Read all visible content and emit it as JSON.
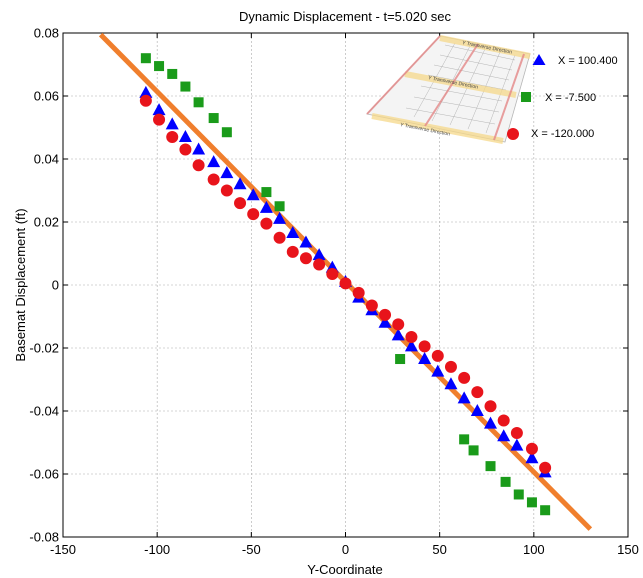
{
  "chart_data": {
    "type": "scatter",
    "title": "Dynamic Displacement - t=5.020 sec",
    "xlabel": "Y-Coordinate",
    "ylabel": "Basemat Displacement (ft)",
    "xlim": [
      -150,
      150
    ],
    "ylim": [
      -0.08,
      0.08
    ],
    "x_ticks": [
      -150,
      -100,
      -50,
      0,
      50,
      100,
      150
    ],
    "y_ticks": [
      0.08,
      0.06,
      0.04,
      0.02,
      0,
      -0.02,
      -0.04,
      -0.06,
      -0.08
    ],
    "x_tick_labels": [
      "-150",
      "-100",
      "-50",
      "0",
      "50",
      "100",
      "150"
    ],
    "y_tick_labels": [
      "0.08",
      "0.06",
      "0.04",
      "0.02",
      "0",
      "-0.02",
      "-0.04",
      "-0.06",
      "-0.08"
    ],
    "grid": true,
    "legend_position": "top-right",
    "fit_line": {
      "color": "#f07f2d",
      "x": [
        -130,
        130
      ],
      "y": [
        0.0795,
        -0.0775
      ]
    },
    "inset_labels": [
      "Y Transverse Direction",
      "Y Transverse Direction",
      "Y Transverse Direction"
    ],
    "series": [
      {
        "name": "X = 100.400",
        "marker": "triangle",
        "color": "#0000ff",
        "x": [
          -106,
          -99,
          -92,
          -85,
          -78,
          -70,
          -63,
          -56,
          -49,
          -42,
          -35,
          -28,
          -21,
          -14,
          -7,
          0,
          7,
          14,
          21,
          28,
          35,
          42,
          49,
          56,
          63,
          70,
          77,
          84,
          91,
          99,
          106
        ],
        "y": [
          0.061,
          0.0555,
          0.051,
          0.047,
          0.043,
          0.039,
          0.0355,
          0.032,
          0.0285,
          0.0245,
          0.021,
          0.0165,
          0.0135,
          0.0095,
          0.0055,
          0.001,
          -0.004,
          -0.008,
          -0.012,
          -0.016,
          -0.0195,
          -0.0235,
          -0.0275,
          -0.0315,
          -0.036,
          -0.04,
          -0.044,
          -0.048,
          -0.051,
          -0.055,
          -0.0595
        ]
      },
      {
        "name": "X = -7.500",
        "marker": "square",
        "color": "#1a9b1a",
        "x": [
          -106,
          -99,
          -92,
          -85,
          -78,
          -70,
          -63,
          -42,
          -35,
          29,
          63,
          68,
          77,
          85,
          92,
          99,
          106
        ],
        "y": [
          0.072,
          0.0695,
          0.067,
          0.063,
          0.058,
          0.053,
          0.0485,
          0.0295,
          0.025,
          -0.0235,
          -0.049,
          -0.0525,
          -0.0575,
          -0.0625,
          -0.0665,
          -0.069,
          -0.0715
        ]
      },
      {
        "name": "X = -120.000",
        "marker": "circle",
        "color": "#e8141b",
        "x": [
          -106,
          -99,
          -92,
          -85,
          -78,
          -70,
          -63,
          -56,
          -49,
          -42,
          -35,
          -28,
          -21,
          -14,
          -7,
          0,
          7,
          14,
          21,
          28,
          35,
          42,
          49,
          56,
          63,
          70,
          77,
          84,
          91,
          99,
          106
        ],
        "y": [
          0.0585,
          0.0525,
          0.047,
          0.043,
          0.038,
          0.0335,
          0.03,
          0.026,
          0.0225,
          0.0195,
          0.015,
          0.0105,
          0.0085,
          0.0065,
          0.0035,
          0.0005,
          -0.0025,
          -0.0065,
          -0.0095,
          -0.0125,
          -0.0165,
          -0.0195,
          -0.0225,
          -0.026,
          -0.0295,
          -0.034,
          -0.0385,
          -0.043,
          -0.047,
          -0.052,
          -0.058
        ]
      }
    ]
  }
}
